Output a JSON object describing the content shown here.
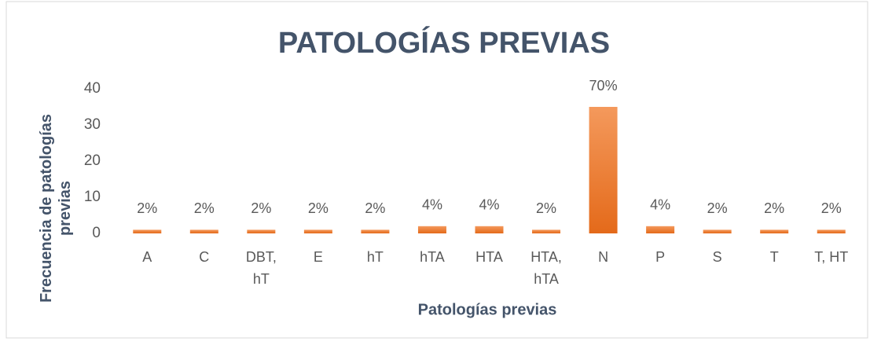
{
  "chart_data": {
    "type": "bar",
    "title": "PATOLOGÍAS  PREVIAS",
    "x_label": "Patologías previas",
    "y_label": "Frecuencia de patologías previas",
    "categories": [
      "A",
      "C",
      "DBT, hT",
      "E",
      "hT",
      "hTA",
      "HTA",
      "HTA, hTA",
      "N",
      "P",
      "S",
      "T",
      "T, HT"
    ],
    "values": [
      1,
      1,
      1,
      1,
      1,
      2,
      2,
      1,
      35,
      2,
      1,
      1,
      1
    ],
    "value_labels": [
      "2%",
      "2%",
      "2%",
      "2%",
      "2%",
      "4%",
      "4%",
      "2%",
      "70%",
      "4%",
      "2%",
      "2%",
      "2%"
    ],
    "color": "#ed7d31",
    "ylim": [
      0,
      40
    ],
    "yticks": [
      0,
      10,
      20,
      30,
      40
    ],
    "grid": false
  }
}
